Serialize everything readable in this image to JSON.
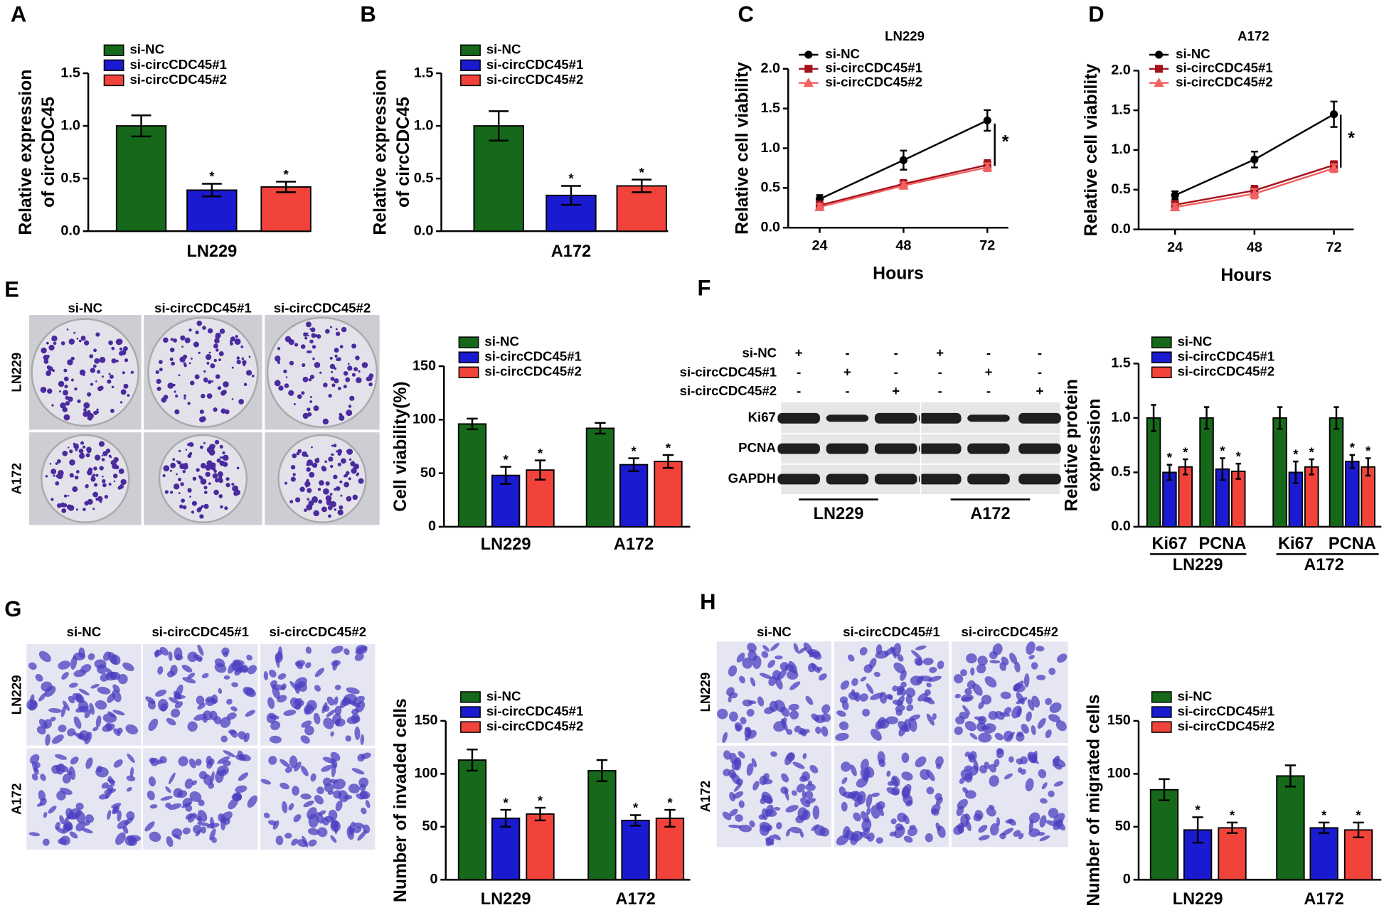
{
  "chart_data": [
    {
      "type": "bar",
      "panel": "A",
      "ylabel": [
        "Relative expression",
        "of circCDC45"
      ],
      "categories": [
        "LN229"
      ],
      "series": [
        {
          "name": "si-NC",
          "color": "#16691a",
          "values": [
            1.0
          ],
          "errors": [
            0.1
          ]
        },
        {
          "name": "si-circCDC45#1",
          "color": "#1a1ad0",
          "values": [
            0.39
          ],
          "errors": [
            0.06
          ],
          "significant": true
        },
        {
          "name": "si-circCDC45#2",
          "color": "#f2433b",
          "values": [
            0.42
          ],
          "errors": [
            0.05
          ],
          "significant": true
        }
      ],
      "significance_mark": "*",
      "ylim": [
        0,
        1.5
      ],
      "yticks": [
        {
          "value": 0,
          "label": "0.0"
        },
        0.5,
        {
          "value": 1,
          "label": "1.0"
        },
        1.5
      ]
    },
    {
      "type": "bar",
      "panel": "B",
      "ylabel": [
        "Relative expression",
        "of circCDC45"
      ],
      "categories": [
        "A172"
      ],
      "series": [
        {
          "name": "si-NC",
          "color": "#16691a",
          "values": [
            1.0
          ],
          "errors": [
            0.14
          ]
        },
        {
          "name": "si-circCDC45#1",
          "color": "#1a1ad0",
          "values": [
            0.34
          ],
          "errors": [
            0.09
          ],
          "significant": true
        },
        {
          "name": "si-circCDC45#2",
          "color": "#f2433b",
          "values": [
            0.43
          ],
          "errors": [
            0.06
          ],
          "significant": true
        }
      ],
      "significance_mark": "*",
      "ylim": [
        0,
        1.5
      ],
      "yticks": [
        {
          "value": 0,
          "label": "0.0"
        },
        0.5,
        {
          "value": 1,
          "label": "1.0"
        },
        1.5
      ]
    },
    {
      "type": "line",
      "panel": "C",
      "title": "LN229",
      "xlabel": "Hours",
      "ylabel": [
        "Relative cell viability"
      ],
      "x": [
        24,
        48,
        72
      ],
      "xlim": [
        15,
        78
      ],
      "xticks": [
        24,
        48,
        72
      ],
      "ylim": [
        0,
        2
      ],
      "yticks": [
        {
          "value": 0,
          "label": "0.0"
        },
        0.5,
        {
          "value": 1,
          "label": "1.0"
        },
        1.5,
        {
          "value": 2,
          "label": "2.0"
        }
      ],
      "series": [
        {
          "name": "si-NC",
          "color": "#000000",
          "marker": "circle",
          "values": [
            0.36,
            0.85,
            1.35
          ],
          "errors": [
            0.05,
            0.12,
            0.13
          ]
        },
        {
          "name": "si-circCDC45#1",
          "color": "#a3121b",
          "marker": "square",
          "values": [
            0.28,
            0.55,
            0.79
          ],
          "errors": [
            0.05,
            0.05,
            0.06
          ]
        },
        {
          "name": "si-circCDC45#2",
          "color": "#f26262",
          "marker": "triangle",
          "values": [
            0.26,
            0.53,
            0.76
          ],
          "errors": [
            0.04,
            0.04,
            0.05
          ]
        }
      ],
      "significance_mark": "*"
    },
    {
      "type": "line",
      "panel": "D",
      "title": "A172",
      "xlabel": "Hours",
      "ylabel": [
        "Relative cell viability"
      ],
      "x": [
        24,
        48,
        72
      ],
      "xlim": [
        13,
        78
      ],
      "xticks": [
        24,
        48,
        72
      ],
      "ylim": [
        0,
        2
      ],
      "yticks": [
        {
          "value": 0,
          "label": "0.0"
        },
        0.5,
        {
          "value": 1,
          "label": "1.0"
        },
        1.5,
        {
          "value": 2,
          "label": "2.0"
        }
      ],
      "series": [
        {
          "name": "si-NC",
          "color": "#000000",
          "marker": "circle",
          "values": [
            0.43,
            0.88,
            1.45
          ],
          "errors": [
            0.05,
            0.1,
            0.16
          ]
        },
        {
          "name": "si-circCDC45#1",
          "color": "#a3121b",
          "marker": "square",
          "values": [
            0.31,
            0.49,
            0.81
          ],
          "errors": [
            0.05,
            0.06,
            0.05
          ]
        },
        {
          "name": "si-circCDC45#2",
          "color": "#f26262",
          "marker": "triangle",
          "values": [
            0.28,
            0.45,
            0.77
          ],
          "errors": [
            0.04,
            0.06,
            0.05
          ]
        }
      ],
      "significance_mark": "*"
    },
    {
      "type": "bar",
      "ylabel": [
        "Cell viability(%)"
      ],
      "categories": [
        "LN229",
        "A172"
      ],
      "series": [
        {
          "name": "si-NC",
          "color": "#16691a",
          "values": [
            96,
            92
          ],
          "errors": [
            5,
            5
          ]
        },
        {
          "name": "si-circCDC45#1",
          "color": "#1a1ad0",
          "values": [
            48,
            58
          ],
          "errors": [
            8,
            6
          ],
          "significant": true
        },
        {
          "name": "si-circCDC45#2",
          "color": "#f2433b",
          "values": [
            53,
            61
          ],
          "errors": [
            9,
            6
          ],
          "significant": true
        }
      ],
      "significance_mark": "*",
      "ylim": [
        0,
        150
      ],
      "yticks": [
        0,
        50,
        100,
        150
      ]
    },
    {
      "type": "bar",
      "ylabel": [
        "Relative protein",
        "expression"
      ],
      "categories": [
        "Ki67",
        "PCNA",
        "Ki67",
        "PCNA"
      ],
      "groups": [
        "LN229",
        "A172"
      ],
      "series": [
        {
          "name": "si-NC",
          "color": "#16691a",
          "values": [
            1.0,
            1.0,
            1.0,
            1.0
          ],
          "errors": [
            0.12,
            0.1,
            0.1,
            0.1
          ]
        },
        {
          "name": "si-circCDC45#1",
          "color": "#1a1ad0",
          "values": [
            0.5,
            0.53,
            0.5,
            0.6
          ],
          "errors": [
            0.07,
            0.1,
            0.1,
            0.06
          ],
          "significant": true
        },
        {
          "name": "si-circCDC45#2",
          "color": "#f2433b",
          "values": [
            0.55,
            0.51,
            0.55,
            0.55
          ],
          "errors": [
            0.07,
            0.07,
            0.07,
            0.08
          ],
          "significant": true
        }
      ],
      "significance_mark": "*",
      "ylim": [
        0,
        1.5
      ],
      "yticks": [
        {
          "value": 0,
          "label": "0.0"
        },
        0.5,
        {
          "value": 1,
          "label": "1.0"
        },
        1.5
      ]
    },
    {
      "type": "bar",
      "ylabel": [
        "Number of invaded cells"
      ],
      "categories": [
        "LN229",
        "A172"
      ],
      "series": [
        {
          "name": "si-NC",
          "color": "#16691a",
          "values": [
            113,
            103
          ],
          "errors": [
            10,
            10
          ]
        },
        {
          "name": "si-circCDC45#1",
          "color": "#1a1ad0",
          "values": [
            58,
            56
          ],
          "errors": [
            8,
            5
          ],
          "significant": true
        },
        {
          "name": "si-circCDC45#2",
          "color": "#f2433b",
          "values": [
            62,
            58
          ],
          "errors": [
            6,
            8
          ],
          "significant": true
        }
      ],
      "significance_mark": "*",
      "ylim": [
        0,
        150
      ],
      "yticks": [
        0,
        50,
        100,
        150
      ]
    },
    {
      "type": "bar",
      "ylabel": [
        "Number of migrated cells"
      ],
      "categories": [
        "LN229",
        "A172"
      ],
      "series": [
        {
          "name": "si-NC",
          "color": "#16691a",
          "values": [
            85,
            98
          ],
          "errors": [
            10,
            10
          ]
        },
        {
          "name": "si-circCDC45#1",
          "color": "#1a1ad0",
          "values": [
            47,
            49
          ],
          "errors": [
            12,
            5
          ],
          "significant": true
        },
        {
          "name": "si-circCDC45#2",
          "color": "#f2433b",
          "values": [
            49,
            47
          ],
          "errors": [
            5,
            7
          ],
          "significant": true
        }
      ],
      "significance_mark": "*",
      "ylim": [
        0,
        150
      ],
      "yticks": [
        0,
        50,
        100,
        150
      ]
    }
  ],
  "figure_panels": [
    {
      "panel": "E",
      "columns": [
        "si-NC",
        "si-circCDC45#1",
        "si-circCDC45#2"
      ],
      "rows": [
        "LN229",
        "A172"
      ]
    },
    {
      "panel": "G",
      "columns": [
        "si-NC",
        "si-circCDC45#1",
        "si-circCDC45#2"
      ],
      "rows": [
        "LN229",
        "A172"
      ]
    },
    {
      "panel": "H",
      "columns": [
        "si-NC",
        "si-circCDC45#1",
        "si-circCDC45#2"
      ],
      "rows": [
        "LN229",
        "A172"
      ]
    }
  ],
  "western_blot": {
    "panel": "F",
    "conditions": [
      "si-NC",
      "si-circCDC45#1",
      "si-circCDC45#2"
    ],
    "signs": [
      [
        "+",
        "-",
        "-",
        "+",
        "-",
        "-"
      ],
      [
        "-",
        "+",
        "-",
        "-",
        "+",
        "-"
      ],
      [
        "-",
        "-",
        "+",
        "-",
        "-",
        "+"
      ]
    ],
    "bands": [
      "Ki67",
      "PCNA",
      "GAPDH"
    ],
    "cell_lines": [
      "LN229",
      "A172"
    ]
  }
}
